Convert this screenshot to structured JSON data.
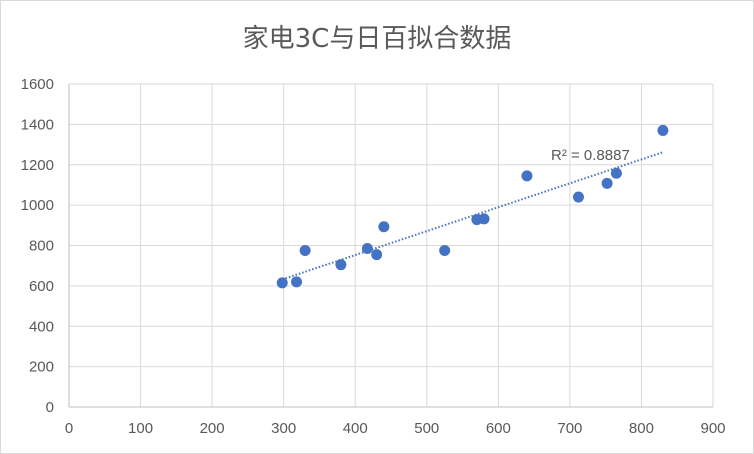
{
  "chart_data": {
    "type": "scatter",
    "title": "家电3C与日百拟合数据",
    "xlabel": "",
    "ylabel": "",
    "xlim": [
      0,
      900
    ],
    "ylim": [
      0,
      1600
    ],
    "x_ticks": [
      "0",
      "100",
      "200",
      "300",
      "400",
      "500",
      "600",
      "700",
      "800",
      "900"
    ],
    "y_ticks": [
      "0",
      "200",
      "400",
      "600",
      "800",
      "1000",
      "1200",
      "1400",
      "1600"
    ],
    "grid": "vertical-and-horizontal",
    "legend": "none",
    "series": [
      {
        "color": "#4472C4",
        "points": [
          {
            "x": 298,
            "y": 615
          },
          {
            "x": 318,
            "y": 620
          },
          {
            "x": 330,
            "y": 775
          },
          {
            "x": 380,
            "y": 705
          },
          {
            "x": 417,
            "y": 785
          },
          {
            "x": 430,
            "y": 755
          },
          {
            "x": 440,
            "y": 893
          },
          {
            "x": 525,
            "y": 775
          },
          {
            "x": 570,
            "y": 928
          },
          {
            "x": 580,
            "y": 932
          },
          {
            "x": 640,
            "y": 1145
          },
          {
            "x": 712,
            "y": 1040
          },
          {
            "x": 752,
            "y": 1108
          },
          {
            "x": 765,
            "y": 1158
          },
          {
            "x": 830,
            "y": 1370
          }
        ]
      }
    ],
    "trendline": {
      "type": "linear",
      "style": "dotted",
      "color": "#4472C4",
      "x_range": [
        298,
        830
      ],
      "y_range": [
        632,
        1262
      ],
      "label": "R² = 0.8887"
    }
  }
}
